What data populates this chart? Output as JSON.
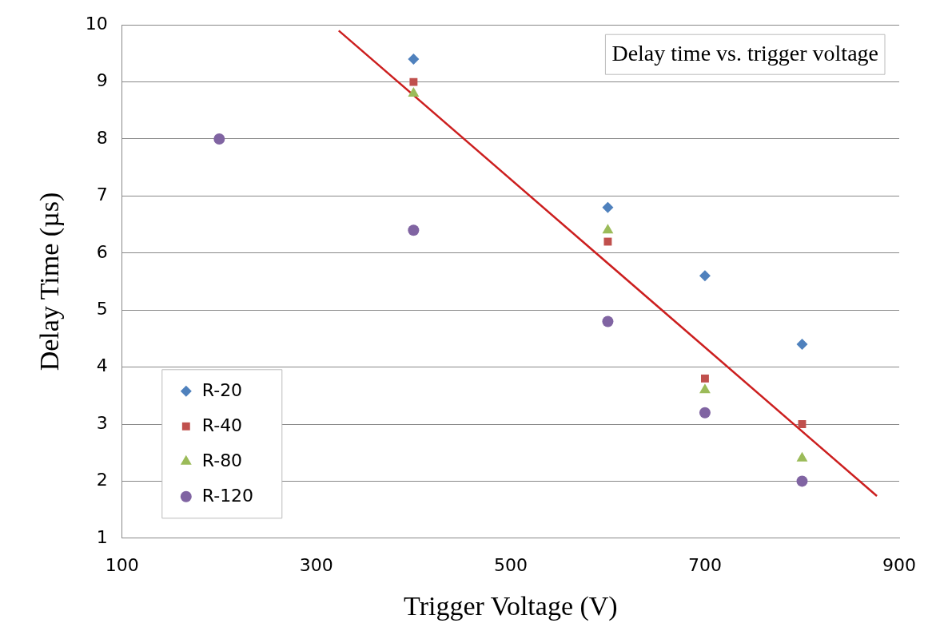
{
  "chart_data": {
    "type": "scatter",
    "title": "Delay time vs. trigger voltage",
    "xlabel": "Trigger Voltage (V)",
    "ylabel": "Delay Time (µs)",
    "series": [
      {
        "name": "R-20",
        "color": "#4f81bd",
        "marker": "diamond",
        "x": [
          400,
          600,
          700,
          800
        ],
        "values": [
          9.4,
          6.8,
          5.6,
          4.4
        ]
      },
      {
        "name": "R-40",
        "color": "#c0504d",
        "marker": "square",
        "x": [
          400,
          600,
          700,
          800
        ],
        "values": [
          9.0,
          6.2,
          3.8,
          3.0
        ]
      },
      {
        "name": "R-80",
        "color": "#9bbb59",
        "marker": "triangle",
        "x": [
          400,
          600,
          700,
          800
        ],
        "values": [
          8.8,
          6.4,
          3.6,
          2.4
        ]
      },
      {
        "name": "R-120",
        "color": "#8064a2",
        "marker": "circle",
        "x": [
          200,
          400,
          600,
          700,
          800
        ],
        "values": [
          8.0,
          6.4,
          4.8,
          3.2,
          2.0
        ]
      },
      {
        "type": "line",
        "color": "#cc1f1f",
        "marker": "none",
        "line_style": "solid",
        "x": [
          323,
          877
        ],
        "values": [
          9.9,
          1.74
        ]
      }
    ],
    "xlim": [
      100,
      900
    ],
    "xticks": [
      100,
      300,
      500,
      700,
      900
    ],
    "ylim": [
      1,
      10
    ],
    "yticks": [
      1,
      2,
      3,
      4,
      5,
      6,
      7,
      8,
      9,
      10
    ],
    "grid": "y",
    "legend": "bottom left"
  }
}
